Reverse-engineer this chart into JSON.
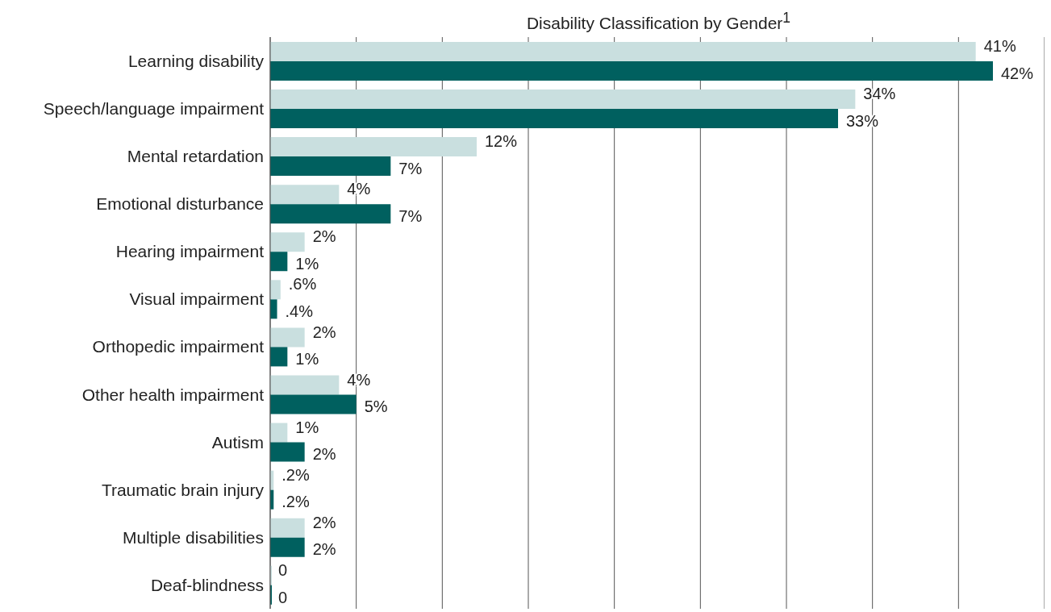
{
  "chart_data": {
    "type": "bar",
    "orientation": "horizontal",
    "title": "Disability Classification by Gender$^{1}$",
    "categories": [
      "Learning disability",
      "Speech/language impairment",
      "Mental retardation",
      "Emotional disturbance",
      "Hearing impairment",
      "Visual impairment",
      "Orthopedic impairment",
      "Other health impairment",
      "Autism",
      "Traumatic brain injury",
      "Multiple disabilities",
      "Deaf-blindness"
    ],
    "series": [
      {
        "color": "#c9dfdf",
        "values": [
          41,
          34,
          12,
          4,
          2,
          0.6,
          2,
          4,
          1,
          0.2,
          2,
          0
        ],
        "value_labels": [
          "41%",
          "34%",
          "12%",
          "4%",
          "2%",
          ".6%",
          "2%",
          "4%",
          "1%",
          ".2%",
          "2%",
          "0"
        ]
      },
      {
        "color": "#00605f",
        "values": [
          42,
          33,
          7,
          7,
          1,
          0.4,
          1,
          5,
          2,
          0.2,
          2,
          0
        ],
        "value_labels": [
          "42%",
          "33%",
          "7%",
          "7%",
          "1%",
          ".4%",
          "1%",
          "5%",
          "2%",
          ".2%",
          "2%",
          "0"
        ]
      }
    ],
    "xlim": [
      0,
      45
    ],
    "xticks": [
      {
        "value": 0,
        "label": null
      },
      {
        "value": 5,
        "label": null
      },
      {
        "value": 10,
        "label": null
      },
      {
        "value": 15,
        "label": null
      },
      {
        "value": 20,
        "label": null
      },
      {
        "value": 25,
        "label": null
      },
      {
        "value": 30,
        "label": null
      },
      {
        "value": 35,
        "label": null
      },
      {
        "value": 40,
        "label": null
      },
      {
        "value": 45,
        "label": null
      }
    ],
    "grid": "x",
    "tick_labels": "y",
    "legend": false
  }
}
